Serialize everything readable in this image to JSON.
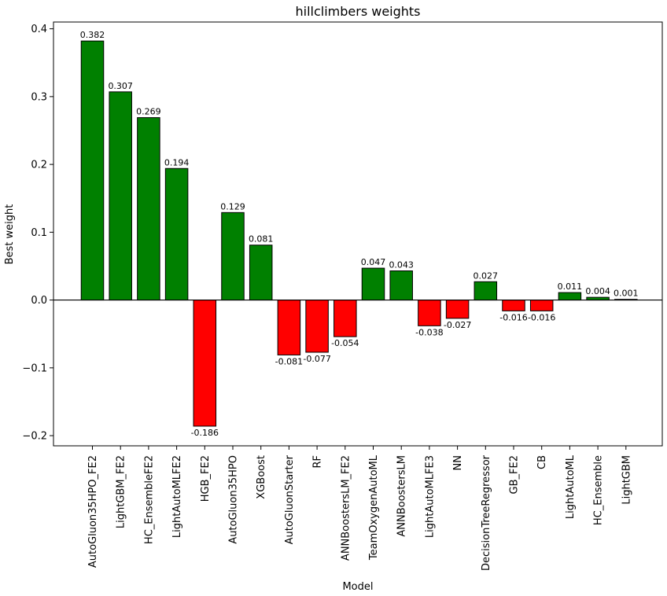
{
  "chart_data": {
    "type": "bar",
    "title": "hillclimbers weights",
    "xlabel": "Model",
    "ylabel": "Best weight",
    "ylim": [
      -0.215,
      0.41
    ],
    "yticks": [
      -0.2,
      -0.1,
      0.0,
      0.1,
      0.2,
      0.3,
      0.4
    ],
    "ytick_labels": [
      "−0.2",
      "−0.1",
      "0.0",
      "0.1",
      "0.2",
      "0.3",
      "0.4"
    ],
    "grid": false,
    "positive_color": "#008000",
    "negative_color": "#ff0000",
    "categories": [
      "AutoGluon35HPO_FE2",
      "LightGBM_FE2",
      "HC_EnsembleFE2",
      "LightAutoMLFE2",
      "HGB_FE2",
      "AutoGluon35HPO",
      "XGBoost",
      "AutoGluonStarter",
      "RF",
      "ANNBoostersLM_FE2",
      "TeamOxygenAutoML",
      "ANNBoostersLM",
      "LightAutoMLFE3",
      "NN",
      "DecisionTreeRegressor",
      "GB_FE2",
      "CB",
      "LightAutoML",
      "HC_Ensemble",
      "LightGBM"
    ],
    "values": [
      0.382,
      0.307,
      0.269,
      0.194,
      -0.186,
      0.129,
      0.081,
      -0.081,
      -0.077,
      -0.054,
      0.047,
      0.043,
      -0.038,
      -0.027,
      0.027,
      -0.016,
      -0.016,
      0.011,
      0.004,
      0.001
    ],
    "value_labels": [
      "0.382",
      "0.307",
      "0.269",
      "0.194",
      "-0.186",
      "0.129",
      "0.081",
      "-0.081",
      "-0.077",
      "-0.054",
      "0.047",
      "0.043",
      "-0.038",
      "-0.027",
      "0.027",
      "-0.016",
      "-0.016",
      "0.011",
      "0.004",
      "0.001"
    ]
  }
}
